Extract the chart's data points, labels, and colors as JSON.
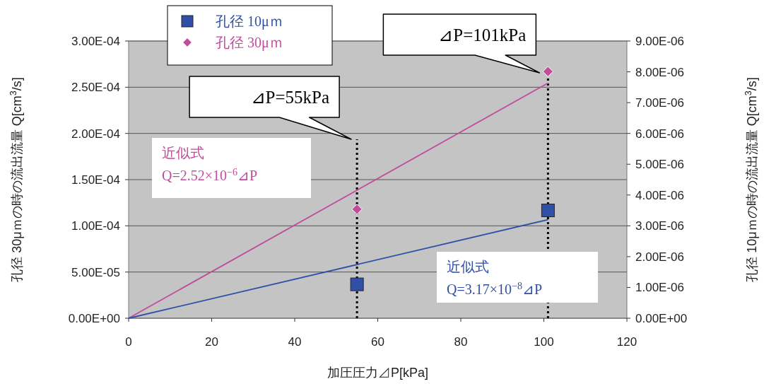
{
  "chart_data": {
    "type": "scatter",
    "xlabel": "加圧圧力⊿P[kPa]",
    "ylabel": "孔径 30μｍの時の流出流量 Q[cm$^{3}$/s]",
    "y2label": "孔径 10μｍの時の流出流量 Q[cm$^{3}$/s]",
    "xlim": [
      0,
      120
    ],
    "xticks": [
      0,
      20,
      40,
      60,
      80,
      100,
      120
    ],
    "ylim": [
      0,
      0.0003
    ],
    "yticks": [
      {
        "value": 0,
        "label": "0.00E+00"
      },
      {
        "value": 5e-05,
        "label": "5.00E-05"
      },
      {
        "value": 0.0001,
        "label": "1.00E-04"
      },
      {
        "value": 0.00015,
        "label": "1.50E-04"
      },
      {
        "value": 0.0002,
        "label": "2.00E-04"
      },
      {
        "value": 0.00025,
        "label": "2.50E-04"
      },
      {
        "value": 0.0003,
        "label": "3.00E-04"
      }
    ],
    "y2lim": [
      0,
      9e-06
    ],
    "y2ticks": [
      {
        "value": 0,
        "label": "0.00E+00"
      },
      {
        "value": 1e-06,
        "label": "1.00E-06"
      },
      {
        "value": 2e-06,
        "label": "2.00E-06"
      },
      {
        "value": 3e-06,
        "label": "3.00E-06"
      },
      {
        "value": 4e-06,
        "label": "4.00E-06"
      },
      {
        "value": 5e-06,
        "label": "5.00E-06"
      },
      {
        "value": 6e-06,
        "label": "6.00E-06"
      },
      {
        "value": 7e-06,
        "label": "7.00E-06"
      },
      {
        "value": 8e-06,
        "label": "8.00E-06"
      },
      {
        "value": 9e-06,
        "label": "9.00E-06"
      }
    ],
    "series": [
      {
        "name": "孔径 10μｍ",
        "type": "scatter",
        "axis": "y2",
        "marker": "square",
        "color": "#3050a8",
        "x": [
          55,
          101
        ],
        "values": [
          1.1e-06,
          3.5e-06
        ]
      },
      {
        "name": "孔径 30μｍ",
        "type": "scatter",
        "axis": "y",
        "marker": "diamond",
        "color": "#c04c9c",
        "x": [
          55,
          101
        ],
        "values": [
          0.000118,
          0.000267
        ]
      },
      {
        "type": "line",
        "axis": "y",
        "marker": "none",
        "color": "#c04c9c",
        "x": [
          0,
          101
        ],
        "values": [
          0,
          0.0002545
        ]
      },
      {
        "type": "line",
        "axis": "y2",
        "marker": "none",
        "color": "#3050a8",
        "x": [
          0,
          101
        ],
        "values": [
          0,
          3.2e-06
        ]
      }
    ],
    "ref_lines": [
      {
        "axis": "x",
        "value": 55,
        "label": "⊿P=55kPa",
        "line_style": "dotted",
        "color": "#000000"
      },
      {
        "axis": "x",
        "value": 101,
        "label": "⊿P=101kPa",
        "line_style": "dotted",
        "color": "#000000"
      }
    ],
    "annotations": [
      "近似式\nQ=2.52×10$^{−6}$⊿P",
      "近似式\nQ=3.17×10$^{−8}$⊿P"
    ],
    "grid": "y",
    "legend": "top left"
  }
}
